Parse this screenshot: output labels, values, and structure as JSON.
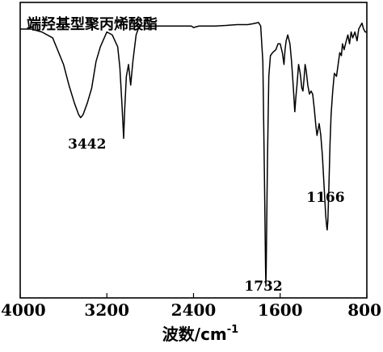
{
  "chart_data": {
    "type": "line",
    "title": "端羟基型聚丙烯酸酯",
    "xlabel": "波数/cm",
    "xlabel_superscript": "-1",
    "ylabel": "",
    "xlim": [
      4000,
      800
    ],
    "x_reversed": true,
    "ylim": [
      0,
      100
    ],
    "grid": false,
    "x_ticks": [
      4000,
      3200,
      2400,
      1600,
      800
    ],
    "x_tick_labels": [
      "4000",
      "3200",
      "2400",
      "1600",
      "800"
    ],
    "annotations": [
      {
        "text": "3442",
        "x": 3442,
        "y": 49
      },
      {
        "text": "1166",
        "x": 1166,
        "y": 22
      },
      {
        "text": "1732",
        "x": 1732,
        "y": 3
      }
    ],
    "series": [
      {
        "values": [
          [
            4000,
            91
          ],
          [
            3900,
            91
          ],
          [
            3800,
            90
          ],
          [
            3700,
            88
          ],
          [
            3600,
            79
          ],
          [
            3550,
            72
          ],
          [
            3500,
            66
          ],
          [
            3460,
            62
          ],
          [
            3442,
            61
          ],
          [
            3420,
            62
          ],
          [
            3380,
            66
          ],
          [
            3340,
            71
          ],
          [
            3300,
            80
          ],
          [
            3260,
            85
          ],
          [
            3200,
            90
          ],
          [
            3150,
            89
          ],
          [
            3100,
            85
          ],
          [
            3080,
            78
          ],
          [
            3060,
            65
          ],
          [
            3045,
            54
          ],
          [
            3035,
            64
          ],
          [
            3020,
            75
          ],
          [
            3000,
            79
          ],
          [
            2980,
            72
          ],
          [
            2960,
            80
          ],
          [
            2930,
            89
          ],
          [
            2900,
            92
          ],
          [
            2800,
            92
          ],
          [
            2700,
            92
          ],
          [
            2600,
            92
          ],
          [
            2500,
            92
          ],
          [
            2420,
            92
          ],
          [
            2400,
            91.5
          ],
          [
            2350,
            92
          ],
          [
            2200,
            92
          ],
          [
            2100,
            92.2
          ],
          [
            2000,
            92.5
          ],
          [
            1900,
            92.5
          ],
          [
            1850,
            92.8
          ],
          [
            1800,
            93.2
          ],
          [
            1780,
            92
          ],
          [
            1760,
            80
          ],
          [
            1745,
            40
          ],
          [
            1735,
            10
          ],
          [
            1732,
            4
          ],
          [
            1729,
            10
          ],
          [
            1718,
            45
          ],
          [
            1705,
            75
          ],
          [
            1690,
            82
          ],
          [
            1670,
            83
          ],
          [
            1640,
            84
          ],
          [
            1620,
            86
          ],
          [
            1600,
            86
          ],
          [
            1580,
            83
          ],
          [
            1565,
            79
          ],
          [
            1555,
            84
          ],
          [
            1545,
            87
          ],
          [
            1530,
            89
          ],
          [
            1510,
            86
          ],
          [
            1495,
            80
          ],
          [
            1480,
            72
          ],
          [
            1465,
            63
          ],
          [
            1455,
            68
          ],
          [
            1445,
            72
          ],
          [
            1430,
            79
          ],
          [
            1415,
            76
          ],
          [
            1400,
            71
          ],
          [
            1390,
            70
          ],
          [
            1380,
            74
          ],
          [
            1370,
            79
          ],
          [
            1360,
            77
          ],
          [
            1345,
            72
          ],
          [
            1330,
            69
          ],
          [
            1315,
            70
          ],
          [
            1300,
            69
          ],
          [
            1285,
            64
          ],
          [
            1270,
            58
          ],
          [
            1260,
            55
          ],
          [
            1250,
            57
          ],
          [
            1240,
            59
          ],
          [
            1225,
            55
          ],
          [
            1210,
            48
          ],
          [
            1195,
            38
          ],
          [
            1180,
            28
          ],
          [
            1170,
            24
          ],
          [
            1166,
            23
          ],
          [
            1160,
            26
          ],
          [
            1150,
            38
          ],
          [
            1140,
            52
          ],
          [
            1130,
            62
          ],
          [
            1115,
            70
          ],
          [
            1100,
            76
          ],
          [
            1080,
            75
          ],
          [
            1065,
            79
          ],
          [
            1050,
            83
          ],
          [
            1035,
            82
          ],
          [
            1025,
            86
          ],
          [
            1010,
            84
          ],
          [
            990,
            87
          ],
          [
            975,
            89
          ],
          [
            960,
            86
          ],
          [
            945,
            90
          ],
          [
            930,
            88
          ],
          [
            910,
            90
          ],
          [
            890,
            87
          ],
          [
            875,
            91
          ],
          [
            860,
            92
          ],
          [
            845,
            93
          ],
          [
            830,
            91
          ],
          [
            815,
            90
          ],
          [
            800,
            90
          ]
        ]
      }
    ]
  }
}
